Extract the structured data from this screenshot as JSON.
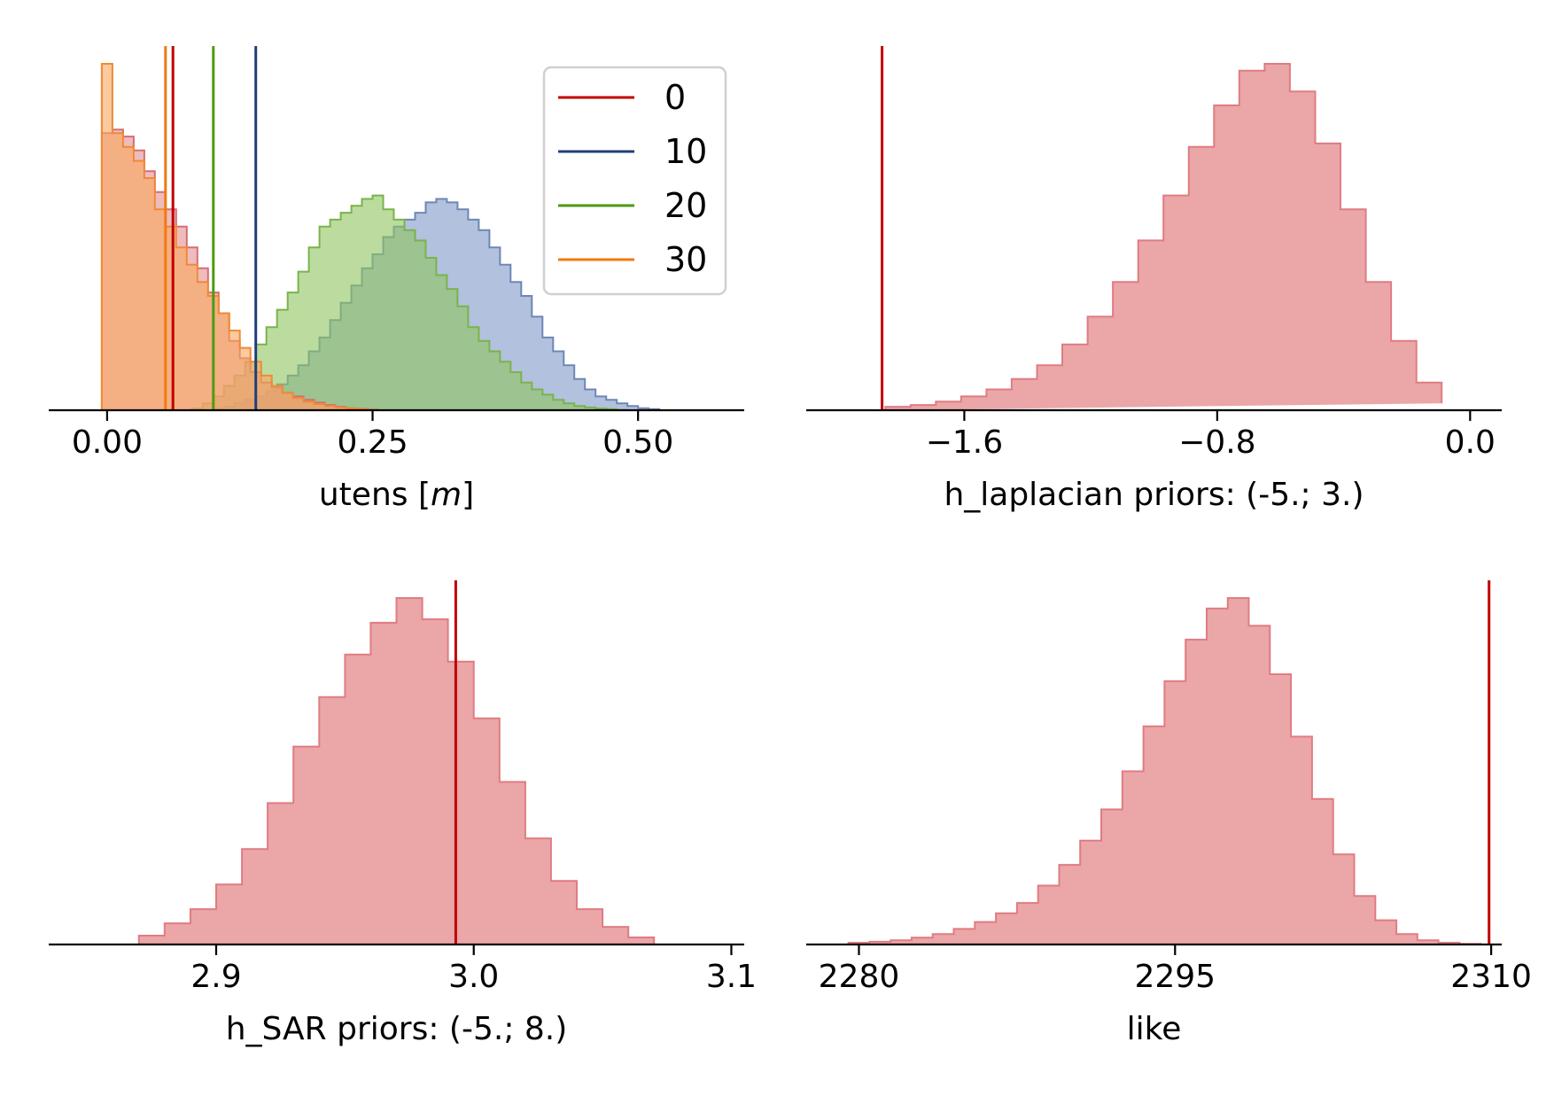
{
  "chart_data": [
    {
      "type": "histogram",
      "panel": "top-left",
      "xlabel": "utens [",
      "xlabel_italic": "m",
      "xlabel_close": "]",
      "xlim": [
        -0.055,
        0.6
      ],
      "xticks": [
        0.0,
        0.25,
        0.5
      ],
      "xtick_labels": [
        "0.00",
        "0.25",
        "0.50"
      ],
      "legend": {
        "placement": "top-right",
        "entries": [
          "0",
          "10",
          "20",
          "30"
        ]
      },
      "colors": {
        "0": "#c00000",
        "10": "#1f3f7a",
        "20": "#4d9a10",
        "30": "#f07a10"
      },
      "series": [
        {
          "name": "0",
          "edges": [
            -0.005,
            0.005,
            0.015,
            0.025,
            0.035,
            0.045,
            0.055,
            0.065,
            0.075,
            0.085,
            0.095,
            0.105,
            0.115,
            0.125,
            0.135,
            0.145,
            0.155,
            0.165,
            0.175,
            0.185,
            0.195,
            0.205,
            0.215,
            0.225,
            0.235,
            0.245,
            0.255
          ],
          "density": [
            0.8,
            0.81,
            0.79,
            0.75,
            0.69,
            0.63,
            0.58,
            0.53,
            0.47,
            0.41,
            0.34,
            0.28,
            0.2,
            0.15,
            0.11,
            0.08,
            0.065,
            0.05,
            0.04,
            0.03,
            0.022,
            0.015,
            0.01,
            0.006,
            0.004,
            0.002
          ],
          "vline": 0.062
        },
        {
          "name": "10",
          "edges": [
            0.1,
            0.11,
            0.12,
            0.13,
            0.14,
            0.15,
            0.16,
            0.17,
            0.18,
            0.19,
            0.2,
            0.21,
            0.22,
            0.23,
            0.24,
            0.25,
            0.26,
            0.27,
            0.28,
            0.29,
            0.3,
            0.31,
            0.32,
            0.33,
            0.34,
            0.35,
            0.36,
            0.37,
            0.38,
            0.39,
            0.4,
            0.41,
            0.42,
            0.43,
            0.44,
            0.45,
            0.46,
            0.47,
            0.48,
            0.49,
            0.5,
            0.51,
            0.52
          ],
          "density": [
            0.005,
            0.01,
            0.02,
            0.03,
            0.04,
            0.055,
            0.075,
            0.1,
            0.13,
            0.17,
            0.21,
            0.26,
            0.31,
            0.36,
            0.41,
            0.45,
            0.5,
            0.53,
            0.55,
            0.57,
            0.6,
            0.61,
            0.6,
            0.58,
            0.55,
            0.52,
            0.47,
            0.42,
            0.37,
            0.33,
            0.27,
            0.21,
            0.17,
            0.13,
            0.09,
            0.06,
            0.04,
            0.03,
            0.02,
            0.012,
            0.006,
            0.003
          ],
          "vline": 0.14
        },
        {
          "name": "20",
          "edges": [
            0.08,
            0.09,
            0.1,
            0.11,
            0.12,
            0.13,
            0.14,
            0.15,
            0.16,
            0.17,
            0.18,
            0.19,
            0.2,
            0.21,
            0.22,
            0.23,
            0.24,
            0.25,
            0.26,
            0.27,
            0.28,
            0.29,
            0.3,
            0.31,
            0.32,
            0.33,
            0.34,
            0.35,
            0.36,
            0.37,
            0.38,
            0.39,
            0.4,
            0.41,
            0.42,
            0.43,
            0.44,
            0.45,
            0.46,
            0.47,
            0.48,
            0.49
          ],
          "density": [
            0.005,
            0.02,
            0.04,
            0.07,
            0.1,
            0.14,
            0.19,
            0.24,
            0.29,
            0.34,
            0.4,
            0.47,
            0.53,
            0.55,
            0.57,
            0.59,
            0.61,
            0.62,
            0.58,
            0.55,
            0.52,
            0.49,
            0.44,
            0.39,
            0.35,
            0.3,
            0.24,
            0.2,
            0.17,
            0.14,
            0.11,
            0.08,
            0.06,
            0.045,
            0.03,
            0.02,
            0.012,
            0.008,
            0.005,
            0.003,
            0.001
          ],
          "vline": 0.1
        },
        {
          "name": "30",
          "edges": [
            -0.005,
            0.005,
            0.015,
            0.025,
            0.035,
            0.045,
            0.055,
            0.065,
            0.075,
            0.085,
            0.095,
            0.105,
            0.115,
            0.125,
            0.135,
            0.145,
            0.155,
            0.165,
            0.175,
            0.185,
            0.195,
            0.205,
            0.215,
            0.225,
            0.235,
            0.245,
            0.255
          ],
          "density": [
            1.0,
            0.8,
            0.76,
            0.72,
            0.67,
            0.58,
            0.53,
            0.47,
            0.42,
            0.37,
            0.33,
            0.28,
            0.23,
            0.18,
            0.14,
            0.1,
            0.07,
            0.05,
            0.035,
            0.025,
            0.018,
            0.012,
            0.008,
            0.005,
            0.003,
            0.001
          ],
          "vline": 0.055
        }
      ]
    },
    {
      "type": "histogram",
      "panel": "top-right",
      "xlabel": "h_laplacian  priors: (-5.; 3.)",
      "xlim": [
        -2.1,
        0.1
      ],
      "xticks": [
        -1.6,
        -0.8,
        0.0
      ],
      "xtick_labels": [
        "−1.6",
        "−0.8",
        "0.0"
      ],
      "series": [
        {
          "edges": [
            -1.85,
            -1.77,
            -1.69,
            -1.61,
            -1.53,
            -1.45,
            -1.37,
            -1.29,
            -1.21,
            -1.13,
            -1.05,
            -0.97,
            -0.89,
            -0.81,
            -0.73,
            -0.65,
            -0.57,
            -0.49,
            -0.41,
            -0.33,
            -0.25,
            -0.17,
            -0.09
          ],
          "density": [
            0.01,
            0.015,
            0.025,
            0.04,
            0.06,
            0.09,
            0.13,
            0.19,
            0.27,
            0.37,
            0.49,
            0.62,
            0.76,
            0.88,
            0.98,
            1.0,
            0.92,
            0.77,
            0.58,
            0.37,
            0.2,
            0.08,
            0.02
          ],
          "vline": -1.86
        }
      ]
    },
    {
      "type": "histogram",
      "panel": "bottom-left",
      "xlabel": "h_SAR  priors: (-5.; 8.)",
      "xlim": [
        2.835,
        3.105
      ],
      "xticks": [
        2.9,
        3.0,
        3.1
      ],
      "xtick_labels": [
        "2.9",
        "3.0",
        "3.1"
      ],
      "series": [
        {
          "edges": [
            2.87,
            2.88,
            2.89,
            2.9,
            2.91,
            2.92,
            2.93,
            2.94,
            2.95,
            2.96,
            2.97,
            2.98,
            2.99,
            3.0,
            3.01,
            3.02,
            3.03,
            3.04,
            3.05,
            3.06,
            3.07
          ],
          "density": [
            0.025,
            0.06,
            0.1,
            0.17,
            0.27,
            0.4,
            0.56,
            0.7,
            0.82,
            0.91,
            0.98,
            0.92,
            0.8,
            0.64,
            0.46,
            0.3,
            0.18,
            0.1,
            0.05,
            0.02
          ],
          "vline": 2.993
        }
      ]
    },
    {
      "type": "histogram",
      "panel": "bottom-right",
      "xlabel": "like",
      "xlim": [
        2277.5,
        2310.5
      ],
      "xticks": [
        2280,
        2295,
        2310
      ],
      "xtick_labels": [
        "2280",
        "2295",
        "2310"
      ],
      "series": [
        {
          "edges": [
            2279.5,
            2280.5,
            2281.5,
            2282.5,
            2283.5,
            2284.5,
            2285.5,
            2286.5,
            2287.5,
            2288.5,
            2289.5,
            2290.5,
            2291.5,
            2292.5,
            2293.5,
            2294.5,
            2295.5,
            2296.5,
            2297.5,
            2298.5,
            2299.5,
            2300.5,
            2301.5,
            2302.5,
            2303.5,
            2304.5,
            2305.5,
            2306.5,
            2307.5,
            2308.5,
            2309.5
          ],
          "density": [
            0.005,
            0.008,
            0.012,
            0.02,
            0.03,
            0.045,
            0.065,
            0.09,
            0.12,
            0.17,
            0.23,
            0.3,
            0.39,
            0.5,
            0.63,
            0.76,
            0.88,
            0.97,
            1.0,
            0.92,
            0.78,
            0.6,
            0.42,
            0.26,
            0.14,
            0.07,
            0.03,
            0.012,
            0.005,
            0.002
          ],
          "vline": 2309.9
        }
      ]
    }
  ]
}
